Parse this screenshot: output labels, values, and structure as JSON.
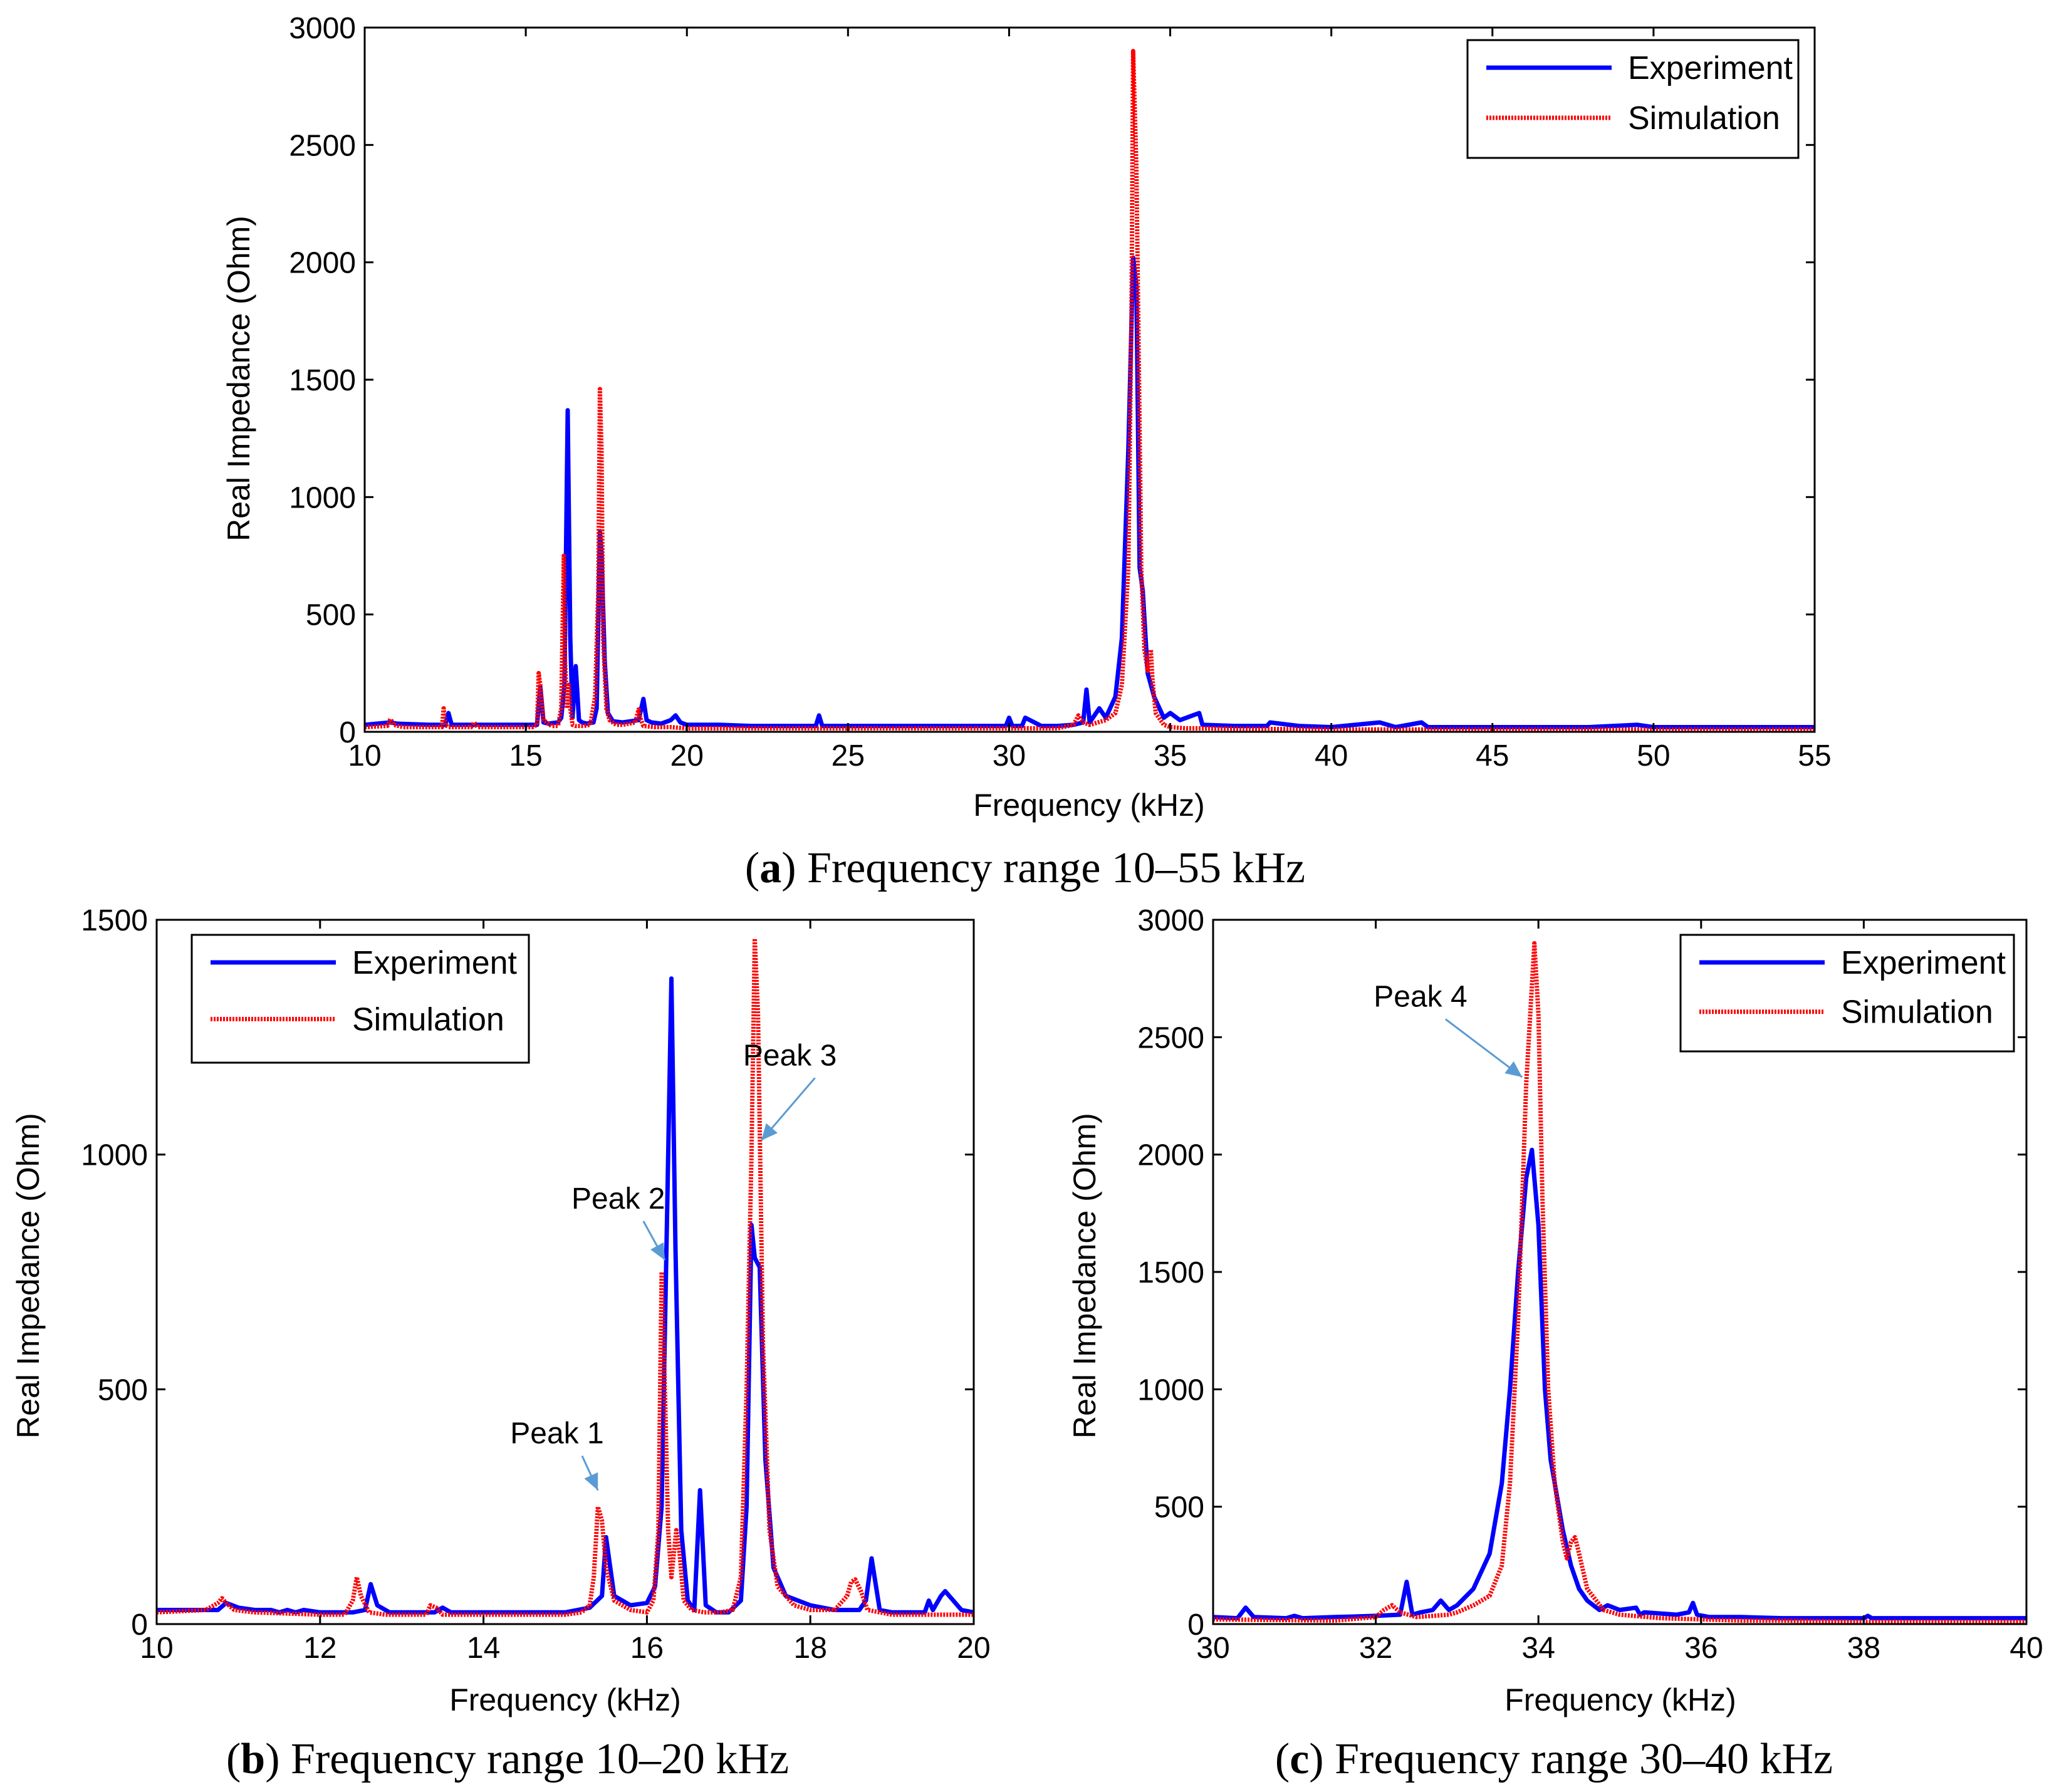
{
  "chart_data": [
    {
      "id": "a",
      "type": "line",
      "caption_letter": "a",
      "caption_text": "Frequency range 10–55 kHz",
      "xlabel": "Frequency (kHz)",
      "ylabel": "Real Impedance (Ohm)",
      "xlim": [
        10,
        55
      ],
      "ylim": [
        0,
        3000
      ],
      "xticks": [
        10,
        15,
        20,
        25,
        30,
        35,
        40,
        45,
        50,
        55
      ],
      "yticks": [
        0,
        500,
        1000,
        1500,
        2000,
        2500,
        3000
      ],
      "legend_position": "top-right",
      "annotations": [],
      "series": [
        {
          "name": "Experiment",
          "color": "#0000ff",
          "style": "solid",
          "x": [
            10,
            10.8,
            11,
            12,
            12.5,
            12.6,
            12.7,
            13.5,
            14,
            15,
            15.35,
            15.45,
            15.55,
            15.7,
            16,
            16.1,
            16.2,
            16.3,
            16.38,
            16.45,
            16.55,
            16.65,
            16.75,
            16.9,
            17.1,
            17.2,
            17.3,
            17.35,
            17.45,
            17.55,
            17.7,
            18,
            18.5,
            18.65,
            18.75,
            18.9,
            19.2,
            19.5,
            19.65,
            19.8,
            20,
            21,
            22,
            23,
            24,
            24.1,
            24.2,
            25,
            27.5,
            28,
            29.9,
            30,
            30.1,
            30.4,
            30.5,
            31,
            31.5,
            32,
            32.3,
            32.4,
            32.5,
            32.8,
            33,
            33.3,
            33.5,
            33.7,
            33.85,
            33.95,
            34.05,
            34.15,
            34.3,
            34.5,
            34.8,
            35,
            35.3,
            35.9,
            36,
            37,
            38,
            38.1,
            39,
            40,
            41.5,
            42,
            42.8,
            43,
            45,
            46,
            47,
            48,
            49.5,
            50,
            52,
            54.4,
            55
          ],
          "y": [
            30,
            40,
            35,
            30,
            30,
            80,
            30,
            30,
            30,
            30,
            30,
            190,
            40,
            35,
            40,
            60,
            200,
            1370,
            400,
            60,
            280,
            50,
            40,
            35,
            40,
            100,
            850,
            760,
            300,
            80,
            45,
            40,
            50,
            140,
            50,
            40,
            35,
            50,
            70,
            40,
            30,
            30,
            25,
            25,
            25,
            70,
            25,
            25,
            25,
            25,
            25,
            60,
            25,
            25,
            60,
            25,
            25,
            30,
            40,
            180,
            40,
            100,
            60,
            150,
            400,
            1200,
            2020,
            1900,
            700,
            600,
            250,
            150,
            60,
            80,
            50,
            80,
            30,
            25,
            25,
            40,
            25,
            20,
            40,
            20,
            40,
            20,
            20,
            20,
            20,
            20,
            30,
            20,
            20,
            20,
            20
          ]
        },
        {
          "name": "Simulation",
          "color": "#ff0000",
          "style": "dotted",
          "x": [
            10,
            10.7,
            10.8,
            10.9,
            11.2,
            12,
            12.4,
            12.45,
            12.5,
            12.6,
            13.3,
            13.4,
            13.5,
            14,
            15,
            15.2,
            15.35,
            15.4,
            15.45,
            15.55,
            15.8,
            16,
            16.1,
            16.18,
            16.22,
            16.28,
            16.33,
            16.38,
            16.45,
            16.55,
            16.8,
            17,
            17.15,
            17.25,
            17.3,
            17.35,
            17.4,
            17.5,
            17.6,
            17.8,
            18,
            18.4,
            18.5,
            18.55,
            18.65,
            19,
            19.5,
            20,
            25,
            30,
            31.5,
            32,
            32.15,
            32.3,
            32.5,
            33,
            33.3,
            33.5,
            33.7,
            33.8,
            33.85,
            33.95,
            34.05,
            34.1,
            34.2,
            34.3,
            34.35,
            34.4,
            34.45,
            34.55,
            34.8,
            35,
            35.5,
            36,
            40,
            45,
            50,
            55
          ],
          "y": [
            20,
            25,
            55,
            30,
            20,
            20,
            20,
            100,
            30,
            20,
            20,
            40,
            20,
            20,
            20,
            20,
            30,
            250,
            200,
            50,
            25,
            25,
            100,
            750,
            300,
            100,
            200,
            100,
            30,
            25,
            25,
            30,
            150,
            600,
            1460,
            1200,
            400,
            100,
            50,
            30,
            30,
            40,
            95,
            60,
            25,
            20,
            20,
            15,
            15,
            15,
            15,
            30,
            70,
            40,
            30,
            50,
            80,
            200,
            700,
            1800,
            2900,
            2400,
            1300,
            700,
            350,
            260,
            320,
            350,
            220,
            80,
            30,
            20,
            15,
            15,
            10,
            10,
            10,
            10
          ]
        }
      ]
    },
    {
      "id": "b",
      "type": "line",
      "caption_letter": "b",
      "caption_text": "Frequency range 10–20 kHz",
      "xlabel": "Frequency (kHz)",
      "ylabel": "Real Impedance (Ohm)",
      "xlim": [
        10,
        20
      ],
      "ylim": [
        0,
        1500
      ],
      "xticks": [
        10,
        12,
        14,
        16,
        18,
        20
      ],
      "yticks": [
        0,
        500,
        1000,
        1500
      ],
      "legend_position": "top-left",
      "annotations": [
        {
          "text": "Peak 1",
          "text_x": 14.9,
          "text_y": 385,
          "arrow_to": [
            15.4,
            285
          ]
        },
        {
          "text": "Peak 2",
          "text_x": 15.65,
          "text_y": 885,
          "arrow_to": [
            16.22,
            775
          ]
        },
        {
          "text": "Peak 3",
          "text_x": 17.75,
          "text_y": 1190,
          "arrow_to": [
            17.4,
            1030
          ]
        }
      ],
      "series": [
        {
          "name": "Experiment",
          "color": "#0000ff",
          "style": "solid",
          "x": [
            10,
            10.5,
            10.75,
            10.85,
            11,
            11.2,
            11.4,
            11.5,
            11.6,
            11.7,
            11.8,
            12,
            12.4,
            12.55,
            12.62,
            12.7,
            12.85,
            13,
            13.4,
            13.5,
            13.6,
            14,
            15,
            15.3,
            15.45,
            15.5,
            15.6,
            15.8,
            16,
            16.1,
            16.18,
            16.25,
            16.3,
            16.35,
            16.42,
            16.5,
            16.58,
            16.65,
            16.72,
            16.85,
            17,
            17.15,
            17.22,
            17.28,
            17.32,
            17.38,
            17.45,
            17.55,
            17.7,
            18,
            18.3,
            18.6,
            18.68,
            18.75,
            18.85,
            19,
            19.4,
            19.45,
            19.5,
            19.6,
            19.65,
            19.75,
            19.85,
            20
          ],
          "y": [
            30,
            30,
            30,
            45,
            35,
            30,
            30,
            25,
            30,
            25,
            30,
            25,
            25,
            30,
            85,
            40,
            25,
            25,
            25,
            35,
            25,
            25,
            25,
            35,
            60,
            185,
            60,
            40,
            45,
            80,
            250,
            900,
            1375,
            800,
            200,
            50,
            30,
            285,
            40,
            25,
            25,
            50,
            250,
            850,
            780,
            760,
            350,
            120,
            60,
            40,
            30,
            30,
            50,
            140,
            30,
            25,
            25,
            50,
            30,
            60,
            70,
            50,
            30,
            25
          ]
        },
        {
          "name": "Simulation",
          "color": "#ff0000",
          "style": "dotted",
          "x": [
            10,
            10.6,
            10.75,
            10.8,
            10.85,
            10.95,
            11.2,
            12,
            12.3,
            12.4,
            12.45,
            12.5,
            12.6,
            12.8,
            13.3,
            13.35,
            13.42,
            13.5,
            13.6,
            14,
            15,
            15.2,
            15.3,
            15.35,
            15.4,
            15.45,
            15.5,
            15.6,
            15.8,
            16,
            16.08,
            16.14,
            16.18,
            16.22,
            16.26,
            16.3,
            16.36,
            16.4,
            16.45,
            16.55,
            16.7,
            16.9,
            17.05,
            17.15,
            17.22,
            17.28,
            17.32,
            17.36,
            17.42,
            17.5,
            17.6,
            17.8,
            18,
            18.3,
            18.45,
            18.5,
            18.55,
            18.62,
            18.7,
            19,
            19.5,
            20
          ],
          "y": [
            25,
            30,
            45,
            55,
            45,
            30,
            25,
            20,
            20,
            50,
            100,
            60,
            25,
            20,
            20,
            40,
            35,
            20,
            20,
            20,
            20,
            25,
            40,
            100,
            250,
            220,
            120,
            50,
            30,
            25,
            50,
            200,
            750,
            500,
            200,
            100,
            200,
            150,
            50,
            30,
            25,
            25,
            30,
            100,
            500,
            1000,
            1460,
            1300,
            600,
            200,
            80,
            40,
            30,
            30,
            60,
            90,
            95,
            70,
            30,
            20,
            20,
            20
          ]
        }
      ]
    },
    {
      "id": "c",
      "type": "line",
      "caption_letter": "c",
      "caption_text": "Frequency range 30–40 kHz",
      "xlabel": "Frequency (kHz)",
      "ylabel": "Real Impedance (Ohm)",
      "xlim": [
        30,
        40
      ],
      "ylim": [
        0,
        3000
      ],
      "xticks": [
        30,
        32,
        34,
        36,
        38,
        40
      ],
      "yticks": [
        0,
        500,
        1000,
        1500,
        2000,
        2500,
        3000
      ],
      "legend_position": "top-right",
      "annotations": [
        {
          "text": "Peak 4",
          "text_x": 32.55,
          "text_y": 2630,
          "arrow_to": [
            33.8,
            2330
          ]
        }
      ],
      "series": [
        {
          "name": "Experiment",
          "color": "#0000ff",
          "style": "solid",
          "x": [
            30,
            30.3,
            30.4,
            30.5,
            30.9,
            31,
            31.1,
            31.5,
            32,
            32.3,
            32.38,
            32.45,
            32.55,
            32.7,
            32.8,
            32.9,
            33,
            33.2,
            33.4,
            33.55,
            33.65,
            33.75,
            33.85,
            33.92,
            34,
            34.08,
            34.15,
            34.2,
            34.3,
            34.4,
            34.45,
            34.5,
            34.6,
            34.75,
            34.85,
            35,
            35.2,
            35.25,
            35.3,
            35.5,
            35.7,
            35.85,
            35.9,
            35.95,
            36.1,
            36.5,
            37,
            38,
            38.05,
            38.1,
            38.2,
            39,
            40
          ],
          "y": [
            30,
            25,
            70,
            30,
            25,
            35,
            25,
            30,
            35,
            40,
            180,
            40,
            50,
            60,
            100,
            60,
            80,
            150,
            300,
            600,
            1000,
            1500,
            1900,
            2020,
            1700,
            1000,
            700,
            600,
            400,
            250,
            200,
            150,
            100,
            60,
            80,
            60,
            70,
            40,
            50,
            45,
            40,
            50,
            90,
            40,
            30,
            30,
            25,
            25,
            35,
            25,
            25,
            25,
            25
          ]
        },
        {
          "name": "Simulation",
          "color": "#ff0000",
          "style": "dotted",
          "x": [
            30,
            31.5,
            32,
            32.1,
            32.2,
            32.3,
            32.5,
            32.7,
            32.9,
            33,
            33.2,
            33.4,
            33.55,
            33.65,
            33.75,
            33.85,
            33.95,
            34,
            34.05,
            34.12,
            34.2,
            34.3,
            34.35,
            34.4,
            34.45,
            34.5,
            34.6,
            34.8,
            35,
            35.5,
            36,
            36.5,
            37,
            38,
            39,
            40
          ],
          "y": [
            20,
            15,
            30,
            60,
            80,
            50,
            30,
            35,
            40,
            50,
            80,
            120,
            250,
            600,
            1300,
            2300,
            2900,
            2600,
            1800,
            1000,
            600,
            350,
            280,
            350,
            370,
            300,
            150,
            60,
            40,
            25,
            20,
            15,
            15,
            10,
            10,
            10
          ]
        }
      ]
    }
  ]
}
